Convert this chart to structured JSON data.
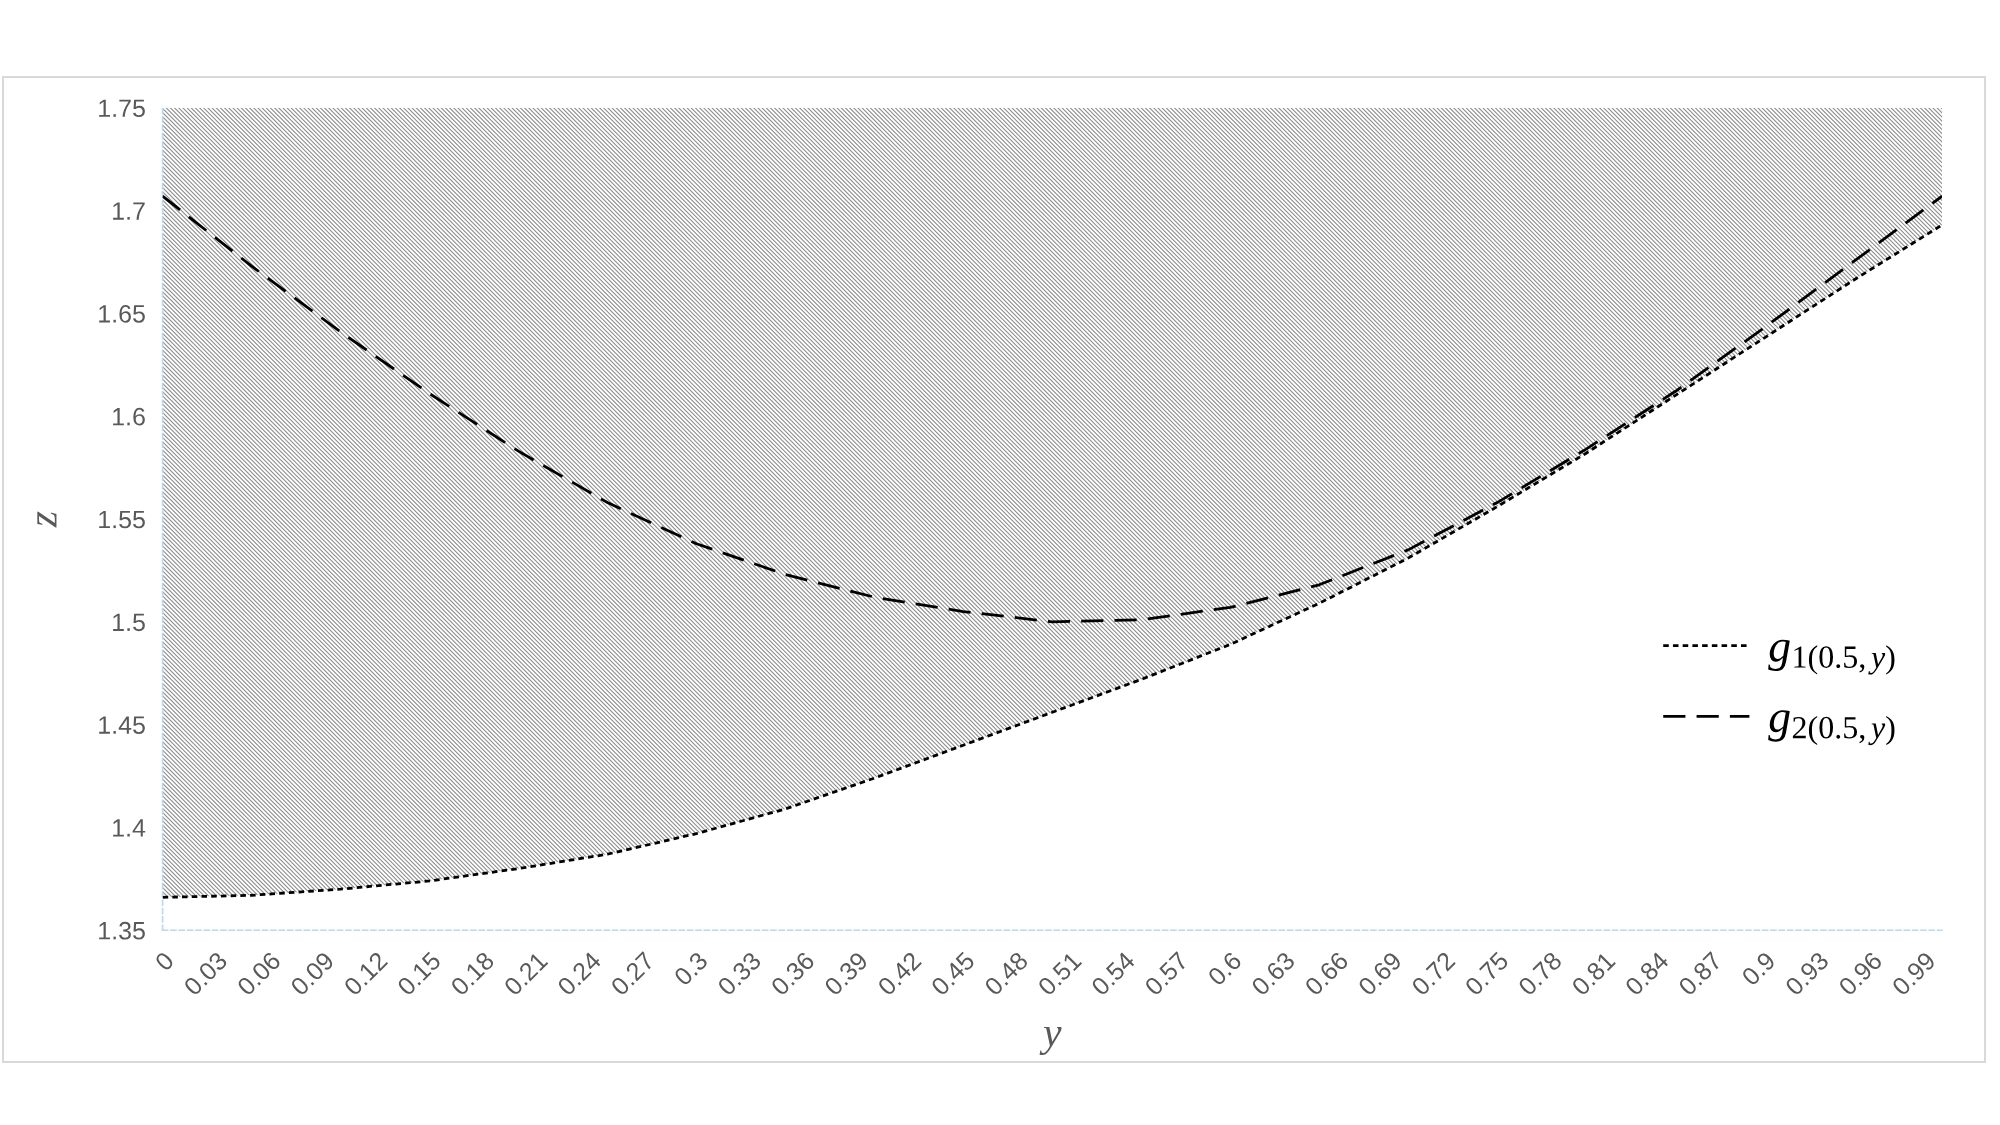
{
  "chart_data": {
    "type": "line",
    "xlabel": "y",
    "ylabel": "z",
    "x": [
      0,
      0.05,
      0.1,
      0.15,
      0.2,
      0.25,
      0.3,
      0.35,
      0.4,
      0.45,
      0.5,
      0.55,
      0.6,
      0.65,
      0.7,
      0.75,
      0.8,
      0.85,
      0.9,
      0.95,
      1
    ],
    "xlim": [
      0,
      1
    ],
    "ylim": [
      1.35,
      1.75
    ],
    "xticks": [
      0,
      0.03,
      0.06,
      0.09,
      0.12,
      0.15,
      0.18,
      0.21,
      0.24,
      0.27,
      0.3,
      0.33,
      0.36,
      0.39,
      0.42,
      0.45,
      0.48,
      0.51,
      0.54,
      0.57,
      0.6,
      0.63,
      0.66,
      0.69,
      0.72,
      0.75,
      0.78,
      0.81,
      0.84,
      0.87,
      0.9,
      0.93,
      0.96,
      0.99
    ],
    "yticks": [
      1.35,
      1.4,
      1.45,
      1.5,
      1.55,
      1.6,
      1.65,
      1.7,
      1.75
    ],
    "legend": "right",
    "series": [
      {
        "name": "g$_{1(0.5,y)}$",
        "color": "#000000",
        "line_style": "dotted",
        "values": [
          1.366,
          1.367,
          1.37,
          1.374,
          1.38,
          1.387,
          1.397,
          1.409,
          1.424,
          1.44,
          1.456,
          1.472,
          1.489,
          1.509,
          1.531,
          1.556,
          1.582,
          1.61,
          1.638,
          1.666,
          1.693
        ],
        "lower": [
          1.366,
          1.367,
          1.37,
          1.374,
          1.38,
          1.387,
          1.397,
          1.409,
          1.424,
          1.44,
          1.456,
          1.472,
          1.489,
          1.509,
          1.531,
          1.556,
          1.582,
          1.61,
          1.638,
          1.666,
          1.693
        ],
        "upper": [
          1.75,
          1.75,
          1.75,
          1.75,
          1.75,
          1.75,
          1.75,
          1.75,
          1.75,
          1.75,
          1.75,
          1.75,
          1.75,
          1.75,
          1.75,
          1.75,
          1.75,
          1.75,
          1.75,
          1.75,
          1.75
        ]
      },
      {
        "name": "g$_{2(0.5,y)}$",
        "color": "#000000",
        "line_style": "dashed",
        "values": [
          1.707,
          1.673,
          1.641,
          1.611,
          1.583,
          1.558,
          1.538,
          1.523,
          1.512,
          1.505,
          1.5,
          1.501,
          1.507,
          1.518,
          1.535,
          1.558,
          1.584,
          1.612,
          1.643,
          1.675,
          1.707
        ]
      }
    ]
  }
}
